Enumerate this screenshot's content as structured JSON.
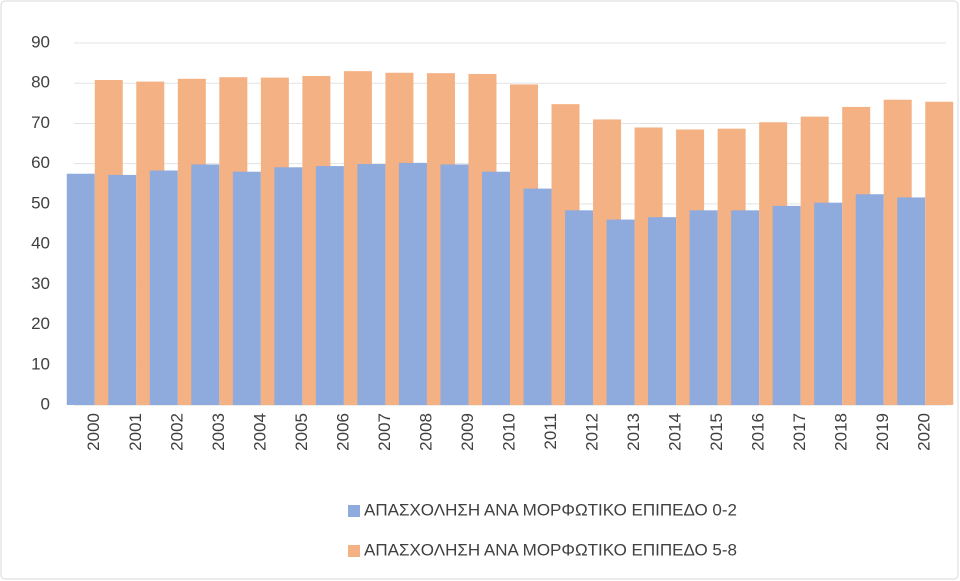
{
  "chart_data": {
    "type": "bar",
    "categories": [
      "2000",
      "2001",
      "2002",
      "2003",
      "2004",
      "2005",
      "2006",
      "2007",
      "2008",
      "2009",
      "2010",
      "2011",
      "2012",
      "2013",
      "2014",
      "2015",
      "2016",
      "2017",
      "2018",
      "2019",
      "2020"
    ],
    "series": [
      {
        "name": "ΑΠΑΣΧΟΛΗΣΗ ΑΝΑ ΜΟΡΦΩΤΙΚΟ ΕΠΙΠΕΔΟ 0-2",
        "color": "#8faadc",
        "values": [
          57.5,
          57.2,
          58.3,
          59.8,
          58.0,
          59.1,
          59.4,
          59.9,
          60.2,
          59.8,
          58.0,
          53.8,
          48.4,
          46.1,
          46.7,
          48.4,
          48.4,
          49.5,
          50.3,
          52.4,
          51.6
        ]
      },
      {
        "name": "ΑΠΑΣΧΟΛΗΣΗ ΑΝΑ ΜΟΡΦΩΤΙΚΟ ΕΠΙΠΕΔΟ 5-8",
        "color": "#f4b183",
        "values": [
          80.8,
          80.4,
          81.1,
          81.5,
          81.4,
          81.8,
          83.0,
          82.6,
          82.5,
          82.3,
          79.7,
          74.8,
          71.0,
          69.0,
          68.5,
          68.7,
          70.3,
          71.7,
          74.1,
          75.9,
          75.4
        ]
      }
    ],
    "ylim": [
      0,
      90
    ],
    "yticks": [
      0,
      10,
      20,
      30,
      40,
      50,
      60,
      70,
      80,
      90
    ],
    "grid": true
  }
}
